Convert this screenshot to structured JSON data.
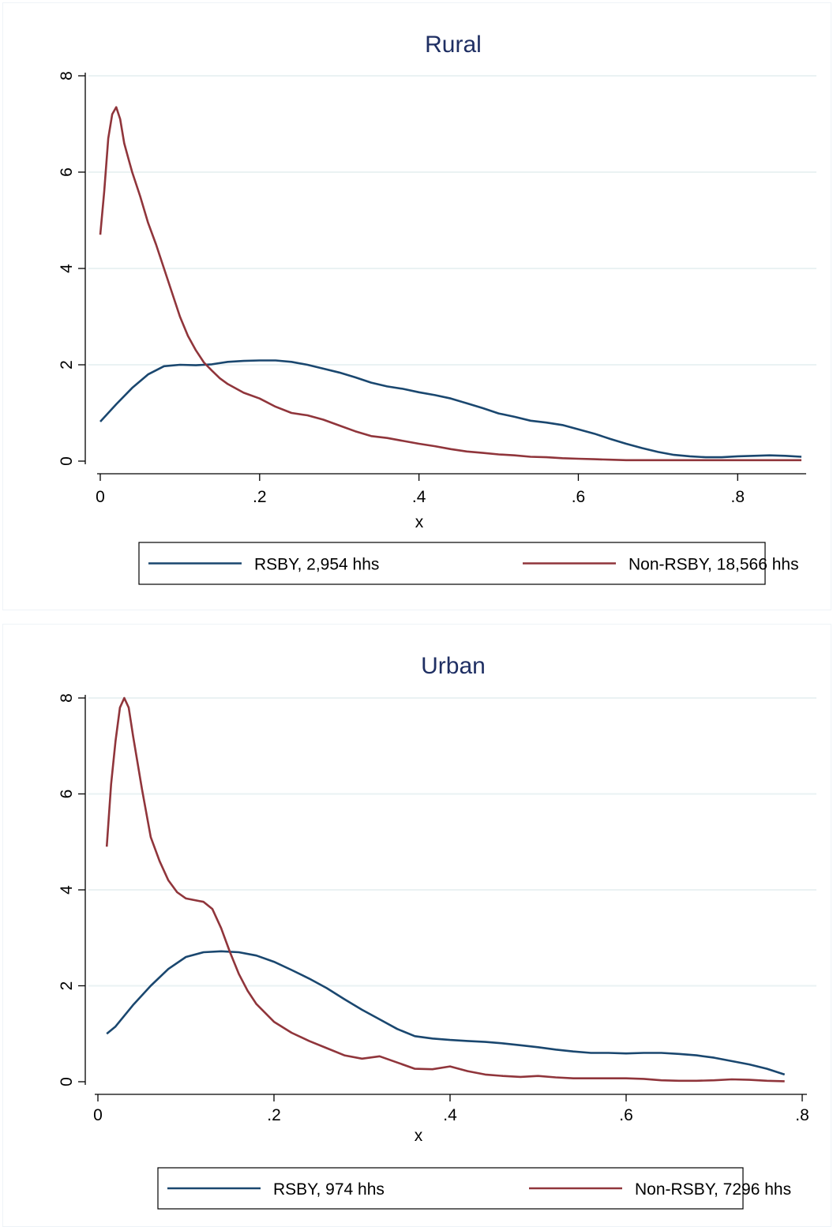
{
  "colors": {
    "rsby": "#1a476f",
    "nonrsby": "#90353b",
    "grid": "#eaf2f3"
  },
  "chart_data": [
    {
      "type": "line",
      "title": "Rural",
      "xlabel": "x",
      "ylabel": "",
      "xlim": [
        0,
        0.88
      ],
      "ylim": [
        0,
        8
      ],
      "xticks": [
        0,
        0.2,
        0.4,
        0.6,
        0.8
      ],
      "xticklabels": [
        "0",
        ".2",
        ".4",
        ".6",
        ".8"
      ],
      "yticks": [
        0,
        2,
        4,
        6,
        8
      ],
      "yticklabels": [
        "0",
        "2",
        "4",
        "6",
        "8"
      ],
      "grid": true,
      "legend_position": "bottom",
      "series": [
        {
          "name": "RSBY, 2,954 hhs",
          "color": "#1a476f",
          "x": [
            0.0,
            0.02,
            0.04,
            0.06,
            0.08,
            0.1,
            0.12,
            0.14,
            0.16,
            0.18,
            0.2,
            0.22,
            0.24,
            0.26,
            0.28,
            0.3,
            0.32,
            0.34,
            0.36,
            0.38,
            0.4,
            0.42,
            0.44,
            0.46,
            0.48,
            0.5,
            0.52,
            0.54,
            0.56,
            0.58,
            0.6,
            0.62,
            0.64,
            0.66,
            0.68,
            0.7,
            0.72,
            0.74,
            0.76,
            0.78,
            0.8,
            0.82,
            0.84,
            0.86,
            0.88
          ],
          "y": [
            0.82,
            1.18,
            1.52,
            1.8,
            1.97,
            2.0,
            1.99,
            2.01,
            2.06,
            2.08,
            2.09,
            2.09,
            2.06,
            2.0,
            1.92,
            1.84,
            1.74,
            1.63,
            1.55,
            1.5,
            1.43,
            1.37,
            1.3,
            1.2,
            1.1,
            0.99,
            0.92,
            0.84,
            0.8,
            0.75,
            0.66,
            0.57,
            0.46,
            0.36,
            0.27,
            0.19,
            0.13,
            0.1,
            0.08,
            0.08,
            0.1,
            0.11,
            0.12,
            0.11,
            0.09
          ]
        },
        {
          "name": "Non-RSBY, 18,566 hhs",
          "color": "#90353b",
          "x": [
            0.0,
            0.005,
            0.01,
            0.015,
            0.02,
            0.025,
            0.03,
            0.035,
            0.04,
            0.05,
            0.06,
            0.07,
            0.08,
            0.09,
            0.1,
            0.11,
            0.12,
            0.13,
            0.14,
            0.15,
            0.16,
            0.18,
            0.2,
            0.22,
            0.24,
            0.26,
            0.28,
            0.3,
            0.32,
            0.34,
            0.36,
            0.38,
            0.4,
            0.42,
            0.44,
            0.46,
            0.48,
            0.5,
            0.52,
            0.54,
            0.56,
            0.58,
            0.6,
            0.62,
            0.64,
            0.66,
            0.68,
            0.7,
            0.72,
            0.74,
            0.76,
            0.78,
            0.8,
            0.82,
            0.84,
            0.86,
            0.88
          ],
          "y": [
            4.7,
            5.6,
            6.7,
            7.2,
            7.35,
            7.1,
            6.6,
            6.3,
            6.0,
            5.5,
            4.95,
            4.5,
            4.0,
            3.5,
            3.0,
            2.6,
            2.3,
            2.05,
            1.88,
            1.72,
            1.6,
            1.42,
            1.3,
            1.13,
            1.0,
            0.95,
            0.86,
            0.74,
            0.62,
            0.52,
            0.48,
            0.42,
            0.36,
            0.31,
            0.25,
            0.2,
            0.17,
            0.14,
            0.12,
            0.09,
            0.08,
            0.06,
            0.05,
            0.04,
            0.03,
            0.02,
            0.02,
            0.02,
            0.02,
            0.02,
            0.02,
            0.02,
            0.02,
            0.02,
            0.02,
            0.02,
            0.02
          ]
        }
      ]
    },
    {
      "type": "line",
      "title": "Urban",
      "xlabel": "x",
      "ylabel": "",
      "xlim": [
        0,
        0.8
      ],
      "ylim": [
        0,
        8
      ],
      "xticks": [
        0,
        0.2,
        0.4,
        0.6,
        0.8
      ],
      "xticklabels": [
        "0",
        ".2",
        ".4",
        ".6",
        ".8"
      ],
      "yticks": [
        0,
        2,
        4,
        6,
        8
      ],
      "yticklabels": [
        "0",
        "2",
        "4",
        "6",
        "8"
      ],
      "grid": true,
      "legend_position": "bottom",
      "series": [
        {
          "name": "RSBY, 974 hhs",
          "color": "#1a476f",
          "x": [
            0.01,
            0.02,
            0.04,
            0.06,
            0.08,
            0.1,
            0.12,
            0.14,
            0.16,
            0.18,
            0.2,
            0.22,
            0.24,
            0.26,
            0.28,
            0.3,
            0.32,
            0.34,
            0.36,
            0.38,
            0.4,
            0.42,
            0.44,
            0.46,
            0.48,
            0.5,
            0.52,
            0.54,
            0.56,
            0.58,
            0.6,
            0.62,
            0.64,
            0.66,
            0.68,
            0.7,
            0.72,
            0.74,
            0.76,
            0.78
          ],
          "y": [
            1.0,
            1.15,
            1.6,
            2.0,
            2.35,
            2.6,
            2.7,
            2.72,
            2.7,
            2.63,
            2.5,
            2.33,
            2.15,
            1.95,
            1.72,
            1.5,
            1.3,
            1.1,
            0.95,
            0.9,
            0.87,
            0.85,
            0.83,
            0.8,
            0.76,
            0.72,
            0.67,
            0.63,
            0.6,
            0.6,
            0.59,
            0.6,
            0.6,
            0.58,
            0.55,
            0.5,
            0.43,
            0.36,
            0.27,
            0.15
          ]
        },
        {
          "name": "Non-RSBY, 7296 hhs",
          "color": "#90353b",
          "x": [
            0.01,
            0.015,
            0.02,
            0.025,
            0.03,
            0.035,
            0.04,
            0.05,
            0.06,
            0.07,
            0.08,
            0.09,
            0.1,
            0.12,
            0.13,
            0.14,
            0.15,
            0.16,
            0.17,
            0.18,
            0.2,
            0.22,
            0.24,
            0.26,
            0.28,
            0.3,
            0.32,
            0.34,
            0.36,
            0.38,
            0.4,
            0.42,
            0.44,
            0.46,
            0.48,
            0.5,
            0.52,
            0.54,
            0.56,
            0.58,
            0.6,
            0.62,
            0.64,
            0.66,
            0.68,
            0.7,
            0.72,
            0.74,
            0.76,
            0.78
          ],
          "y": [
            4.9,
            6.2,
            7.1,
            7.8,
            8.0,
            7.8,
            7.2,
            6.1,
            5.1,
            4.6,
            4.2,
            3.95,
            3.82,
            3.75,
            3.6,
            3.2,
            2.7,
            2.25,
            1.9,
            1.62,
            1.25,
            1.02,
            0.85,
            0.7,
            0.55,
            0.48,
            0.53,
            0.4,
            0.27,
            0.26,
            0.32,
            0.22,
            0.15,
            0.12,
            0.1,
            0.12,
            0.09,
            0.07,
            0.07,
            0.07,
            0.07,
            0.06,
            0.03,
            0.02,
            0.02,
            0.03,
            0.05,
            0.04,
            0.02,
            0.01
          ]
        }
      ]
    }
  ]
}
